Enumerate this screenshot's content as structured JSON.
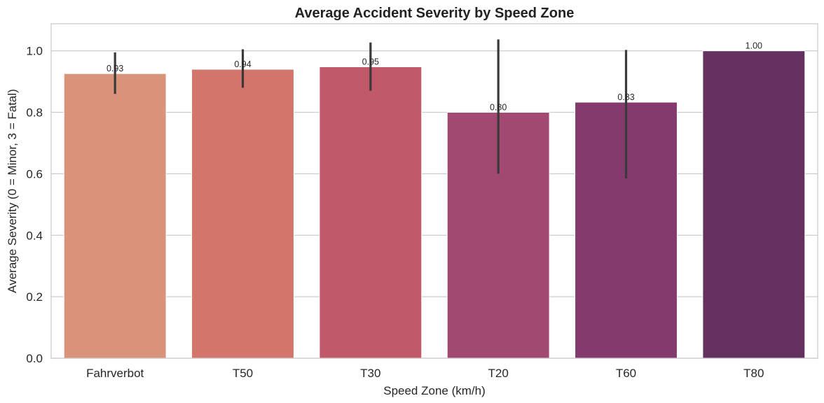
{
  "chart_data": {
    "type": "bar",
    "title": "Average Accident Severity by Speed Zone",
    "xlabel": "Speed Zone (km/h)",
    "ylabel": "Average Severity (0 = Minor, 3 = Fatal)",
    "categories": [
      "Fahrverbot",
      "T50",
      "T30",
      "T20",
      "T60",
      "T80"
    ],
    "values": [
      0.926,
      0.94,
      0.948,
      0.8,
      0.833,
      1.0
    ],
    "value_labels": [
      "0.93",
      "0.94",
      "0.95",
      "0.80",
      "0.83",
      "1.00"
    ],
    "error_bars": [
      [
        0.86,
        0.995
      ],
      [
        0.88,
        1.005
      ],
      [
        0.87,
        1.027
      ],
      [
        0.6,
        1.037
      ],
      [
        0.585,
        1.003
      ],
      null
    ],
    "ylim": [
      0,
      1.088
    ],
    "yticks": [
      "0.0",
      "0.2",
      "0.4",
      "0.6",
      "0.8",
      "1.0"
    ],
    "grid": true,
    "colors": [
      "#d9937a",
      "#d2756b",
      "#c05a6a",
      "#a24971",
      "#823b6c",
      "#64305f"
    ],
    "error_color": "#3a3a3a"
  }
}
